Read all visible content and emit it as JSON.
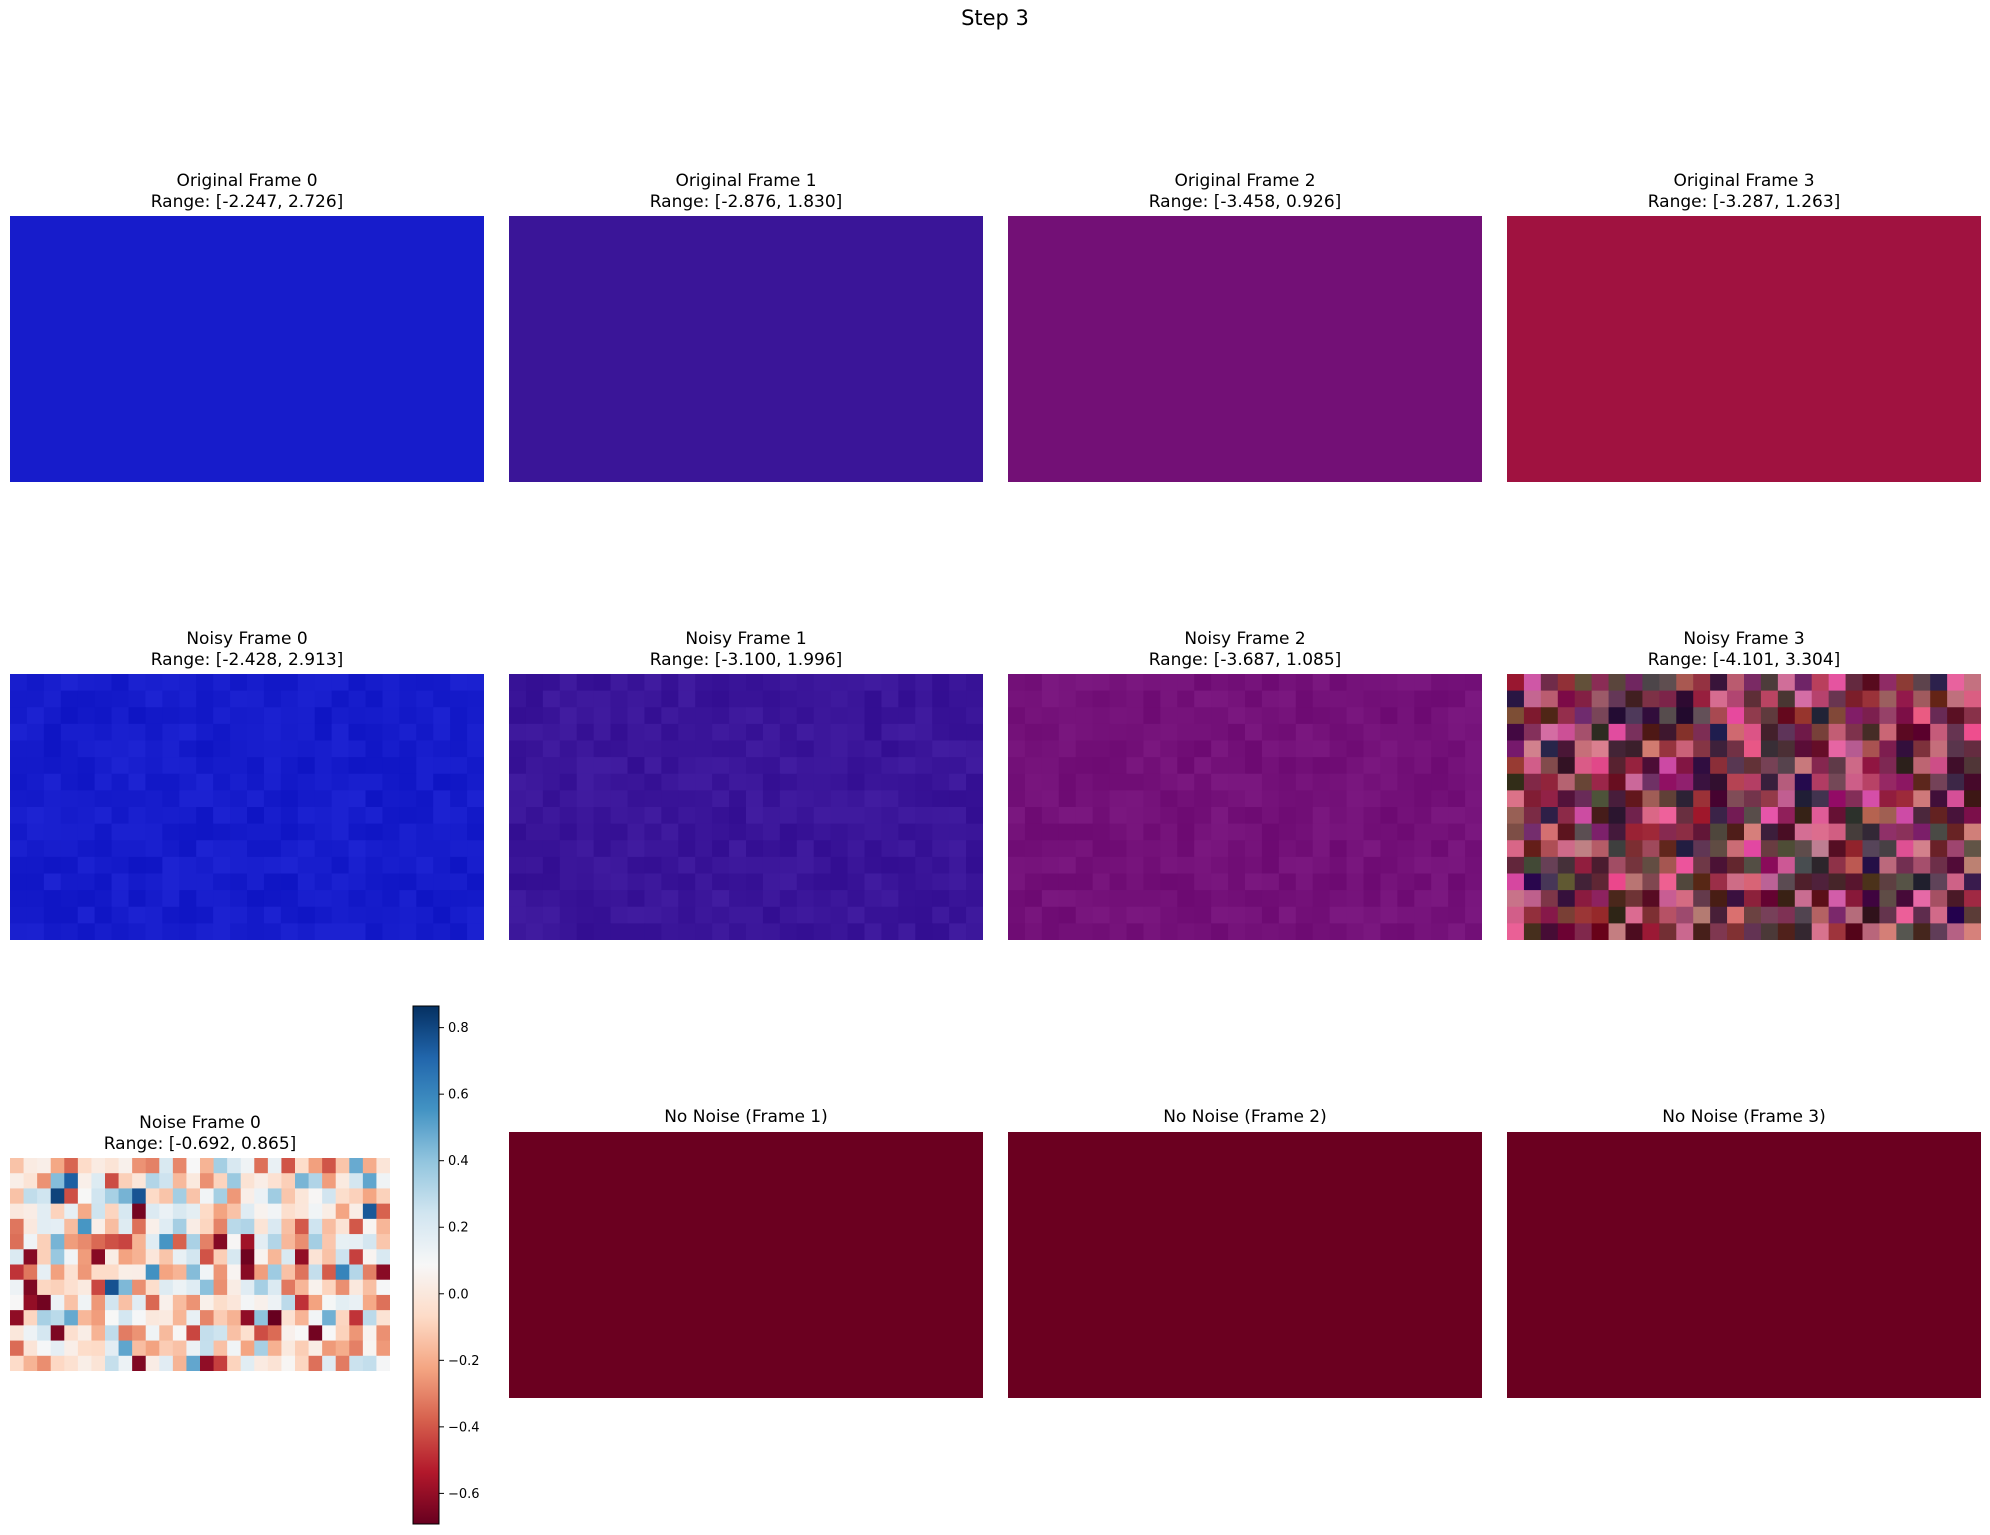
{
  "figure": {
    "suptitle": "Step 3"
  },
  "chart_data": [
    {
      "type": "heatmap",
      "row": 0,
      "col": 0,
      "title": "Original Frame 0",
      "subtitle": "Range: [-2.247, 2.726]",
      "range": [
        -2.247,
        2.726
      ],
      "base_color": "#171ccb",
      "noise": 0.0
    },
    {
      "type": "heatmap",
      "row": 0,
      "col": 1,
      "title": "Original Frame 1",
      "subtitle": "Range: [-2.876, 1.830]",
      "range": [
        -2.876,
        1.83
      ],
      "base_color": "#3a1598",
      "noise": 0.0
    },
    {
      "type": "heatmap",
      "row": 0,
      "col": 2,
      "title": "Original Frame 2",
      "subtitle": "Range: [-3.458, 0.926]",
      "range": [
        -3.458,
        0.926
      ],
      "base_color": "#731076",
      "noise": 0.0
    },
    {
      "type": "heatmap",
      "row": 0,
      "col": 3,
      "title": "Original Frame 3",
      "subtitle": "Range: [-3.287, 1.263]",
      "range": [
        -3.287,
        1.263
      ],
      "base_color": "#a01240",
      "noise": 0.0
    },
    {
      "type": "heatmap",
      "row": 1,
      "col": 0,
      "title": "Noisy Frame 0",
      "subtitle": "Range: [-2.428, 2.913]",
      "range": [
        -2.428,
        2.913
      ],
      "base_color": "#161ccb",
      "noise": 0.03
    },
    {
      "type": "heatmap",
      "row": 1,
      "col": 1,
      "title": "Noisy Frame 1",
      "subtitle": "Range: [-3.100, 1.996]",
      "range": [
        -3.1,
        1.996
      ],
      "base_color": "#3a1599",
      "noise": 0.03
    },
    {
      "type": "heatmap",
      "row": 1,
      "col": 2,
      "title": "Noisy Frame 2",
      "subtitle": "Range: [-3.687, 1.085]",
      "range": [
        -3.687,
        1.085
      ],
      "base_color": "#741179",
      "noise": 0.03
    },
    {
      "type": "heatmap",
      "row": 1,
      "col": 3,
      "title": "Noisy Frame 3",
      "subtitle": "Range: [-4.101, 3.304]",
      "range": [
        -4.101,
        3.304
      ],
      "base_color": "#5a1e30",
      "noise": 1.0
    },
    {
      "type": "heatmap",
      "row": 2,
      "col": 0,
      "title": "Noise Frame 0",
      "subtitle": "Range: [-0.692, 0.865]",
      "range": [
        -0.692,
        0.865
      ],
      "colormap": "RdBu",
      "grid": [
        28,
        14
      ],
      "colorbar": {
        "ticks": [
          0.8,
          0.6,
          0.4,
          0.2,
          0.0,
          -0.2,
          -0.4,
          -0.6
        ],
        "tick_labels": [
          "0.8",
          "0.6",
          "0.4",
          "0.2",
          "0.0",
          "−0.2",
          "−0.4",
          "−0.6"
        ],
        "vmin": -0.692,
        "vmax": 0.865
      }
    },
    {
      "type": "heatmap",
      "row": 2,
      "col": 1,
      "title": "No Noise (Frame 1)",
      "subtitle": "",
      "base_color": "#6b0020",
      "noise": 0.0
    },
    {
      "type": "heatmap",
      "row": 2,
      "col": 2,
      "title": "No Noise (Frame 2)",
      "subtitle": "",
      "base_color": "#6b0020",
      "noise": 0.0
    },
    {
      "type": "heatmap",
      "row": 2,
      "col": 3,
      "title": "No Noise (Frame 3)",
      "subtitle": "",
      "base_color": "#6b0020",
      "noise": 0.0
    }
  ]
}
